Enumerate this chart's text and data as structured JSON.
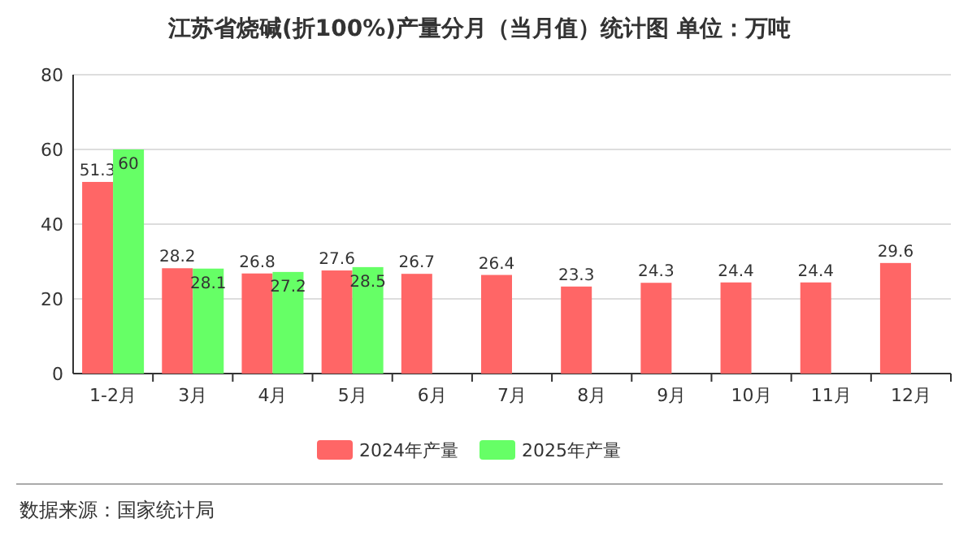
{
  "chart_data": {
    "type": "bar",
    "title": "江苏省烧碱(折100%)产量分月（当月值）统计图  单位：万吨",
    "categories": [
      "1-2月",
      "3月",
      "4月",
      "5月",
      "6月",
      "7月",
      "8月",
      "9月",
      "10月",
      "11月",
      "12月"
    ],
    "series": [
      {
        "name": "2024年产量",
        "color": "#ff6666",
        "values": [
          51.3,
          28.2,
          26.8,
          27.6,
          26.7,
          26.4,
          23.3,
          24.3,
          24.4,
          24.4,
          29.6
        ]
      },
      {
        "name": "2025年产量",
        "color": "#66ff66",
        "values": [
          60,
          28.1,
          27.2,
          28.5,
          null,
          null,
          null,
          null,
          null,
          null,
          null
        ]
      }
    ],
    "ylim": [
      0,
      80
    ],
    "yticks": [
      0,
      20,
      40,
      60,
      80
    ],
    "grid": "y",
    "legend": "bottom",
    "data_labels": true,
    "annotations": [
      "数据来源：国家统计局"
    ]
  }
}
